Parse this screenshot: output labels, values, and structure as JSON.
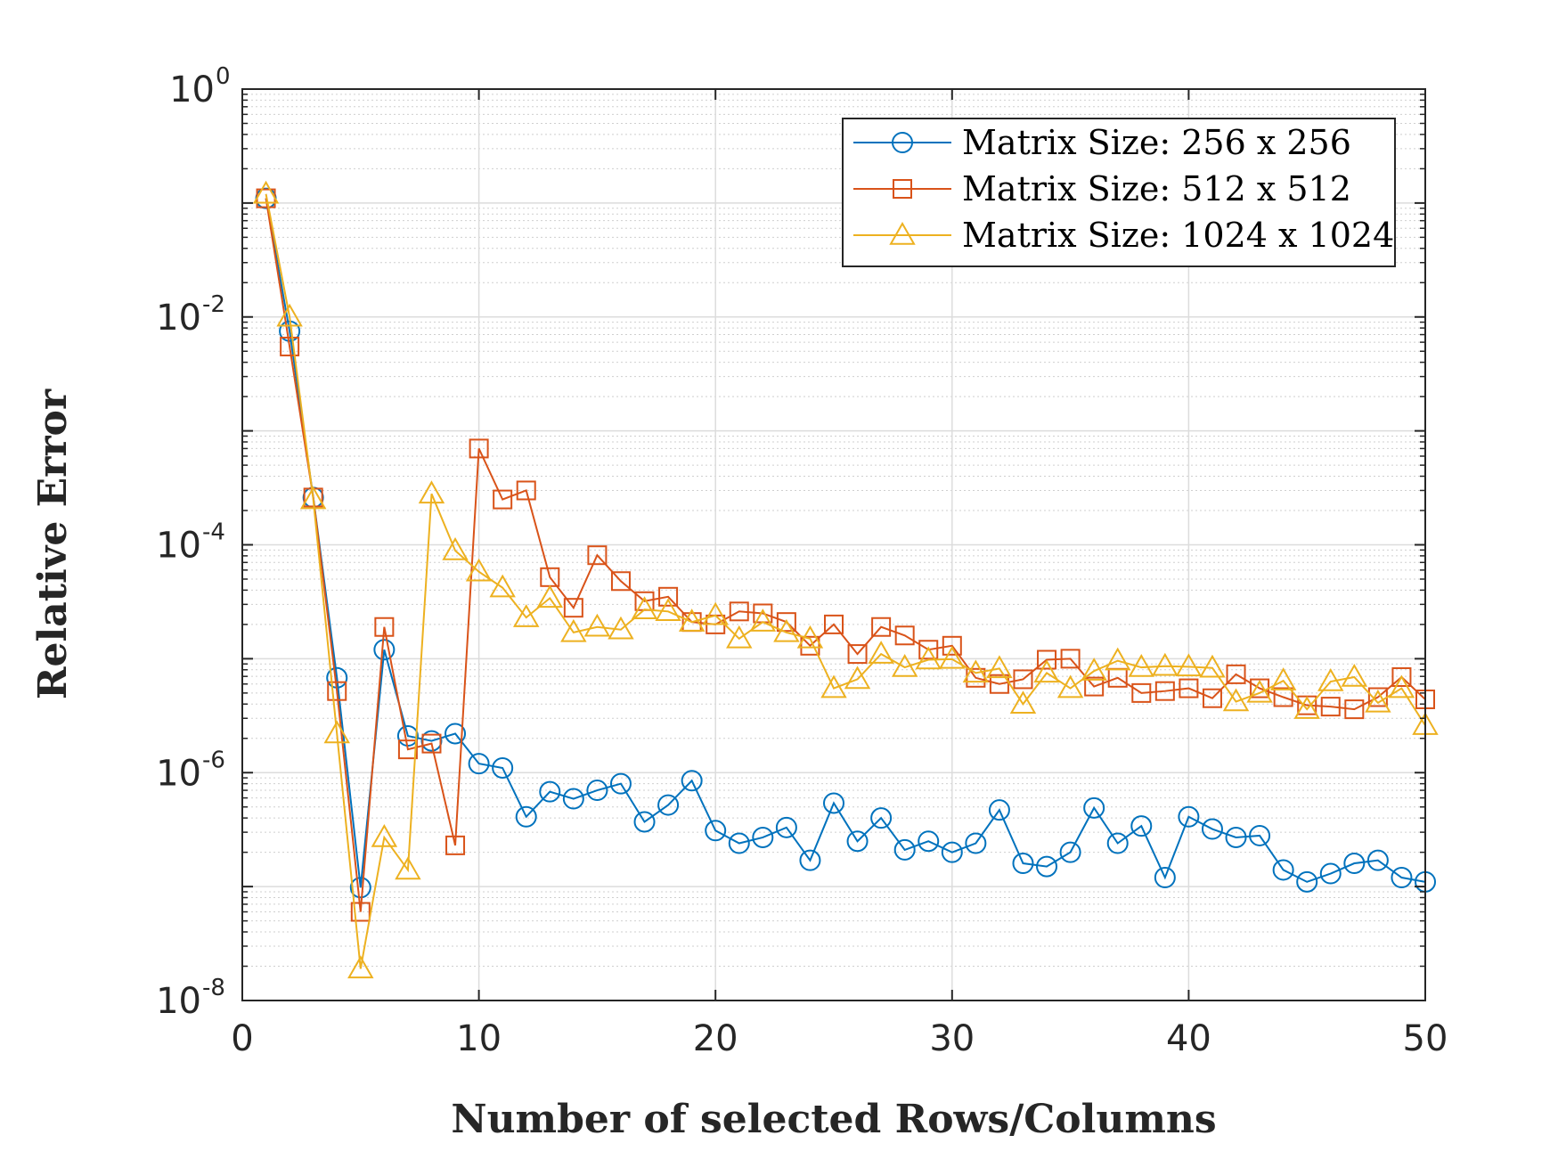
{
  "chart_data": {
    "type": "line",
    "title": "",
    "xlabel": "Number of selected Rows/Columns",
    "ylabel": "Relative Error",
    "xlim": [
      0,
      50
    ],
    "ylim": [
      1e-08,
      1
    ],
    "yscale": "log",
    "grid": true,
    "legend_position": "top-right",
    "x_ticks": [
      {
        "value": 0,
        "label": "0"
      },
      {
        "value": 10,
        "label": "10"
      },
      {
        "value": 20,
        "label": "20"
      },
      {
        "value": 30,
        "label": "30"
      },
      {
        "value": 40,
        "label": "40"
      },
      {
        "value": 50,
        "label": "50"
      }
    ],
    "y_ticks": [
      {
        "value": 1,
        "base": "10",
        "exp": "0"
      },
      {
        "value": 0.01,
        "base": "10",
        "exp": "-2"
      },
      {
        "value": 0.0001,
        "base": "10",
        "exp": "-4"
      },
      {
        "value": 1e-06,
        "base": "10",
        "exp": "-6"
      },
      {
        "value": 1e-08,
        "base": "10",
        "exp": "-8"
      }
    ],
    "x": [
      1,
      2,
      3,
      4,
      5,
      6,
      7,
      8,
      9,
      10,
      11,
      12,
      13,
      14,
      15,
      16,
      17,
      18,
      19,
      20,
      21,
      22,
      23,
      24,
      25,
      26,
      27,
      28,
      29,
      30,
      31,
      32,
      33,
      34,
      35,
      36,
      37,
      38,
      39,
      40,
      41,
      42,
      43,
      44,
      45,
      46,
      47,
      48,
      49,
      50
    ],
    "series": [
      {
        "name": "Matrix Size: 256 x 256",
        "color": "#0072BD",
        "marker": "circle",
        "values": [
          0.11,
          0.0075,
          0.00026,
          6.8e-06,
          9.8e-08,
          1.2e-05,
          2.1e-06,
          1.9e-06,
          2.2e-06,
          1.2e-06,
          1.1e-06,
          4.1e-07,
          6.8e-07,
          5.9e-07,
          7e-07,
          8e-07,
          3.7e-07,
          5.2e-07,
          8.5e-07,
          3.1e-07,
          2.4e-07,
          2.7e-07,
          3.3e-07,
          1.7e-07,
          5.4e-07,
          2.5e-07,
          4e-07,
          2.1e-07,
          2.5e-07,
          2e-07,
          2.4e-07,
          4.7e-07,
          1.6e-07,
          1.5e-07,
          2e-07,
          4.9e-07,
          2.4e-07,
          3.4e-07,
          1.2e-07,
          4.1e-07,
          3.2e-07,
          2.7e-07,
          2.8e-07,
          1.4e-07,
          1.1e-07,
          1.3e-07,
          1.6e-07,
          1.7e-07,
          1.2e-07,
          1.1e-07
        ]
      },
      {
        "name": "Matrix Size: 512 x 512",
        "color": "#D95319",
        "marker": "square",
        "values": [
          0.11,
          0.0055,
          0.00026,
          5.2e-06,
          6e-08,
          1.9e-05,
          1.6e-06,
          1.8e-06,
          2.3e-07,
          0.0007,
          0.00025,
          0.0003,
          5.2e-05,
          2.8e-05,
          8.1e-05,
          4.8e-05,
          3.2e-05,
          3.5e-05,
          2.1e-05,
          2e-05,
          2.6e-05,
          2.5e-05,
          2.1e-05,
          1.3e-05,
          2e-05,
          1.1e-05,
          1.9e-05,
          1.6e-05,
          1.2e-05,
          1.3e-05,
          6.8e-06,
          6e-06,
          6.6e-06,
          9.8e-06,
          1e-05,
          5.7e-06,
          6.8e-06,
          5e-06,
          5.2e-06,
          5.5e-06,
          4.5e-06,
          7.3e-06,
          5.5e-06,
          4.6e-06,
          3.9e-06,
          3.8e-06,
          3.6e-06,
          4.6e-06,
          6.9e-06,
          4.4e-06
        ]
      },
      {
        "name": "Matrix Size: 1024 x 1024",
        "color": "#EDB120",
        "marker": "triangle",
        "values": [
          0.12,
          0.01,
          0.00025,
          2.2e-06,
          1.9e-08,
          2.7e-07,
          1.4e-07,
          0.00028,
          8.9e-05,
          5.8e-05,
          4.2e-05,
          2.3e-05,
          3.4e-05,
          1.7e-05,
          1.9e-05,
          1.8e-05,
          2.7e-05,
          2.6e-05,
          2.1e-05,
          2.4e-05,
          1.5e-05,
          2.1e-05,
          1.7e-05,
          1.5e-05,
          5.5e-06,
          6.6e-06,
          1.1e-05,
          8.4e-06,
          9.8e-06,
          9.9e-06,
          7.5e-06,
          8.2e-06,
          4e-06,
          7.5e-06,
          5.5e-06,
          7.8e-06,
          9.6e-06,
          8.4e-06,
          8.6e-06,
          8.5e-06,
          8.3e-06,
          4.2e-06,
          5e-06,
          6.4e-06,
          3.6e-06,
          6.3e-06,
          6.9e-06,
          4.1e-06,
          5.5e-06,
          2.6e-06
        ]
      }
    ]
  }
}
